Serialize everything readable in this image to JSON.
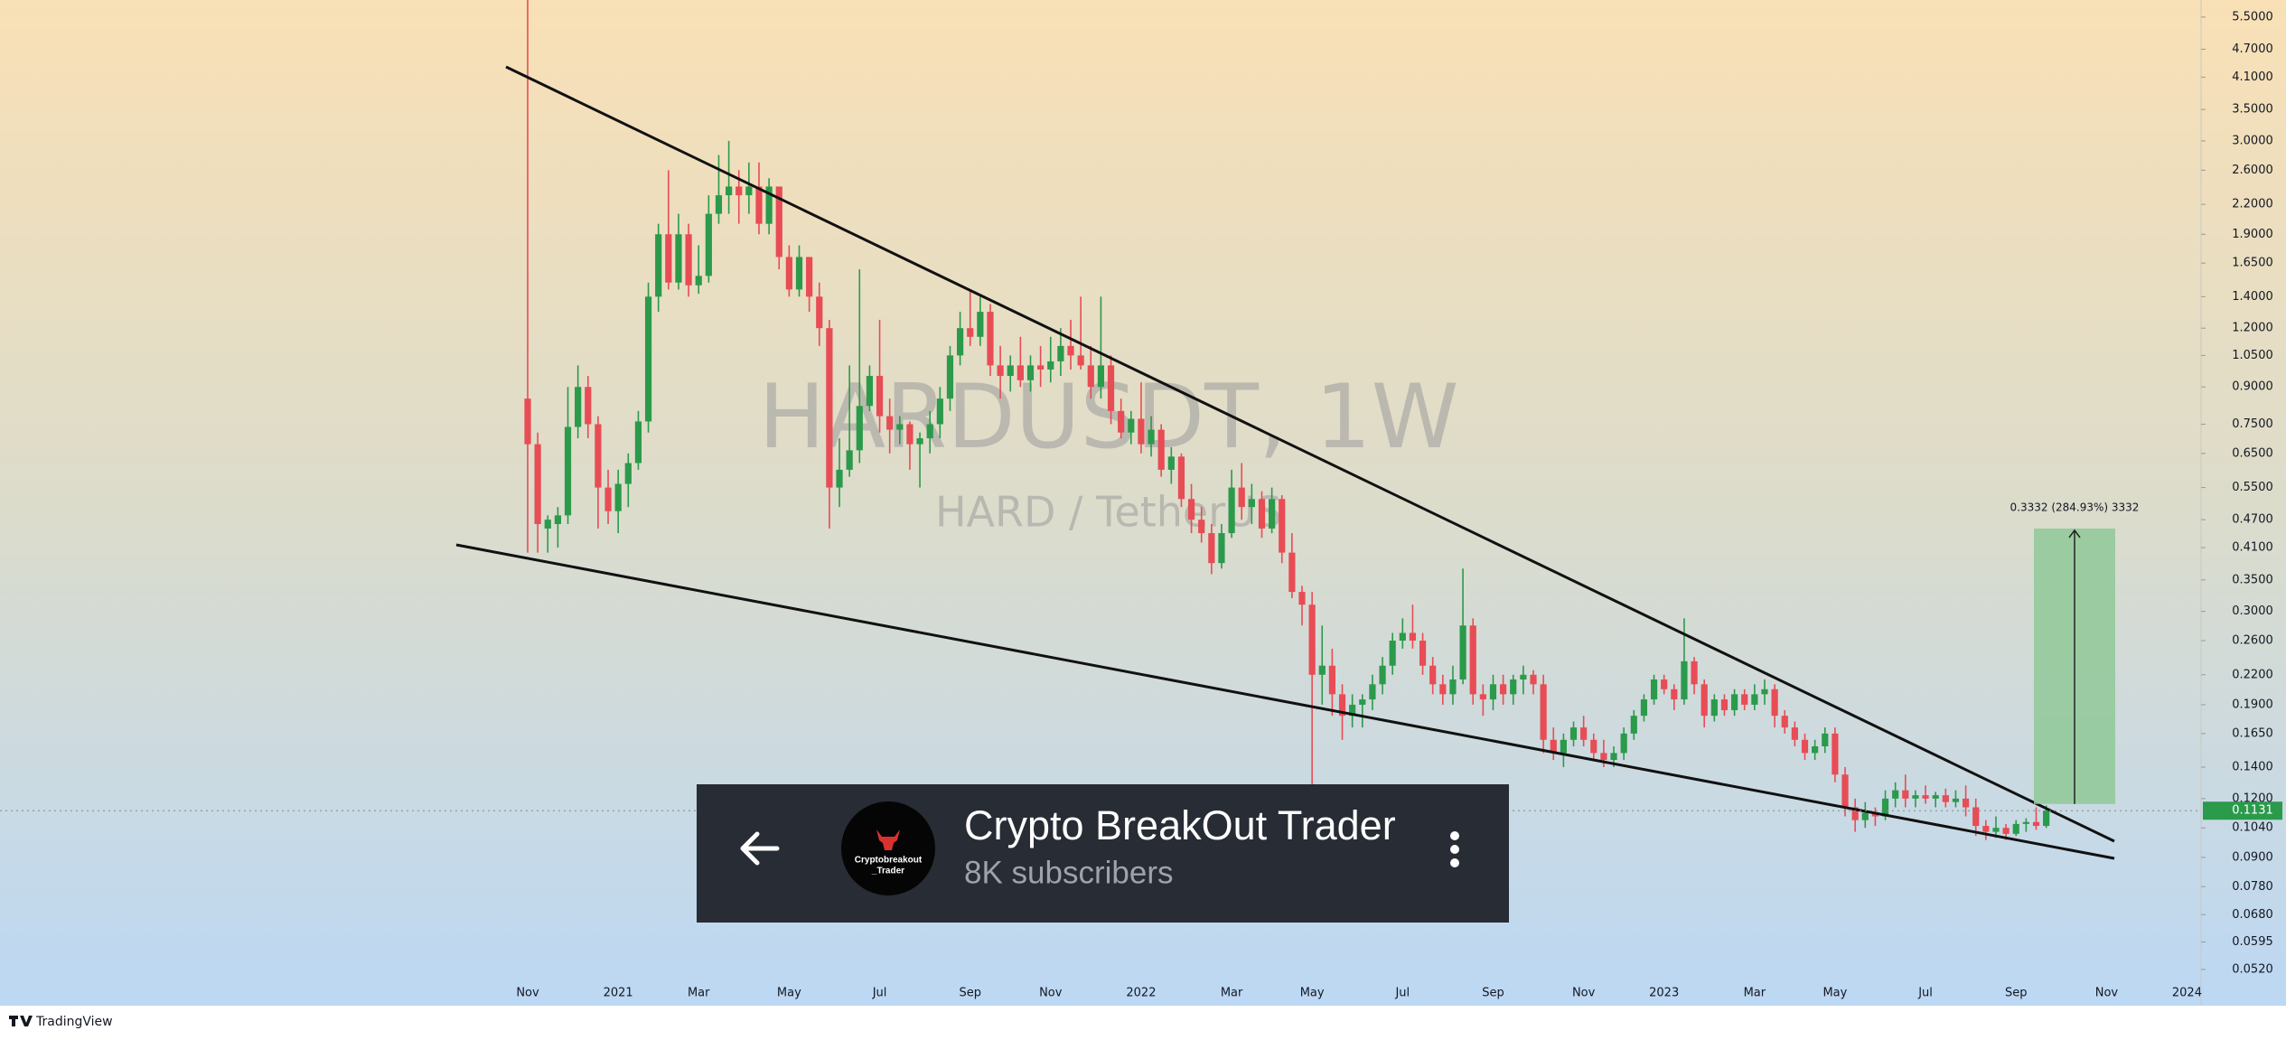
{
  "chart_data": {
    "type": "candlestick",
    "title": "HARDUSDT, 1W",
    "subtitle": "HARD / TetherUS",
    "log_scale": true,
    "up_color": "#2b9a4b",
    "down_color": "#e84c55",
    "ylim": [
      0.0493,
      5.98
    ],
    "yticks": [
      {
        "value": 5.5,
        "label": "5.5000"
      },
      {
        "value": 4.7,
        "label": "4.7000"
      },
      {
        "value": 4.1,
        "label": "4.1000"
      },
      {
        "value": 3.5,
        "label": "3.5000"
      },
      {
        "value": 3.0,
        "label": "3.0000"
      },
      {
        "value": 2.6,
        "label": "2.6000"
      },
      {
        "value": 2.2,
        "label": "2.2000"
      },
      {
        "value": 1.9,
        "label": "1.9000"
      },
      {
        "value": 1.65,
        "label": "1.6500"
      },
      {
        "value": 1.4,
        "label": "1.4000"
      },
      {
        "value": 1.2,
        "label": "1.2000"
      },
      {
        "value": 1.05,
        "label": "1.0500"
      },
      {
        "value": 0.9,
        "label": "0.9000"
      },
      {
        "value": 0.75,
        "label": "0.7500"
      },
      {
        "value": 0.65,
        "label": "0.6500"
      },
      {
        "value": 0.55,
        "label": "0.5500"
      },
      {
        "value": 0.47,
        "label": "0.4700"
      },
      {
        "value": 0.41,
        "label": "0.4100"
      },
      {
        "value": 0.35,
        "label": "0.3500"
      },
      {
        "value": 0.3,
        "label": "0.3000"
      },
      {
        "value": 0.26,
        "label": "0.2600"
      },
      {
        "value": 0.22,
        "label": "0.2200"
      },
      {
        "value": 0.19,
        "label": "0.1900"
      },
      {
        "value": 0.165,
        "label": "0.1650"
      },
      {
        "value": 0.14,
        "label": "0.1400"
      },
      {
        "value": 0.12,
        "label": "0.1200"
      },
      {
        "value": 0.104,
        "label": "0.1040"
      },
      {
        "value": 0.09,
        "label": "0.0900"
      },
      {
        "value": 0.078,
        "label": "0.0780"
      },
      {
        "value": 0.068,
        "label": "0.0680"
      },
      {
        "value": 0.0595,
        "label": "0.0595"
      },
      {
        "value": 0.052,
        "label": "0.0520"
      }
    ],
    "categories": [
      "Nov",
      null,
      null,
      null,
      null,
      null,
      null,
      null,
      null,
      "2021",
      null,
      null,
      null,
      null,
      null,
      null,
      null,
      "Mar",
      null,
      null,
      null,
      null,
      null,
      null,
      null,
      null,
      "May",
      null,
      null,
      null,
      null,
      null,
      null,
      null,
      null,
      "Jul",
      null,
      null,
      null,
      null,
      null,
      null,
      null,
      null,
      "Sep",
      null,
      null,
      null,
      null,
      null,
      null,
      null,
      "Nov",
      null,
      null,
      null,
      null,
      null,
      null,
      null,
      null,
      "2022",
      null,
      null,
      null,
      null,
      null,
      null,
      null,
      null,
      "Mar",
      null,
      null,
      null,
      null,
      null,
      null,
      null,
      "May",
      null,
      null,
      null,
      null,
      null,
      null,
      null,
      null,
      "Jul",
      null,
      null,
      null,
      null,
      null,
      null,
      null,
      null,
      "Sep",
      null,
      null,
      null,
      null,
      null,
      null,
      null,
      null,
      "Nov",
      null,
      null,
      null,
      null,
      null,
      null,
      null,
      "2023",
      null,
      null,
      null,
      null,
      null,
      null,
      null,
      null,
      "Mar",
      null,
      null,
      null,
      null,
      null,
      null,
      null,
      "May",
      null,
      null,
      null,
      null,
      null,
      null,
      null,
      null,
      "Jul",
      null,
      null,
      null,
      null,
      null,
      null,
      null,
      null,
      "Sep",
      null,
      null,
      null,
      null,
      null,
      null,
      null,
      null,
      "Nov",
      null,
      null,
      null,
      null,
      null,
      null,
      null,
      "2024",
      null,
      null
    ],
    "open": [
      0.85,
      0.68,
      0.45,
      0.46,
      0.48,
      0.74,
      0.9,
      0.75,
      0.55,
      0.49,
      0.56,
      0.62,
      0.76,
      1.4,
      1.9,
      1.5,
      1.9,
      1.48,
      1.55,
      2.1,
      2.3,
      2.4,
      2.3,
      2.4,
      2.0,
      2.4,
      1.7,
      1.45,
      1.7,
      1.4,
      1.2,
      0.55,
      0.6,
      0.66,
      0.82,
      0.95,
      0.78,
      0.73,
      0.75,
      0.68,
      0.7,
      0.75,
      0.85,
      1.05,
      1.2,
      1.15,
      1.3,
      1.0,
      0.95,
      1.0,
      0.93,
      1.0,
      0.98,
      1.02,
      1.1,
      1.05,
      1.0,
      0.9,
      1.0,
      0.8,
      0.72,
      0.77,
      0.68,
      0.73,
      0.6,
      0.64,
      0.52,
      0.47,
      0.44,
      0.38,
      0.44,
      0.55,
      0.5,
      0.52,
      0.45,
      0.52,
      0.4,
      0.33,
      0.31,
      0.22,
      0.23,
      0.2,
      0.18,
      0.19,
      0.195,
      0.21,
      0.23,
      0.26,
      0.27,
      0.26,
      0.23,
      0.21,
      0.2,
      0.215,
      0.28,
      0.2,
      0.195,
      0.21,
      0.2,
      0.215,
      0.22,
      0.21,
      0.16,
      0.15,
      0.16,
      0.17,
      0.16,
      0.15,
      0.145,
      0.15,
      0.165,
      0.18,
      0.195,
      0.215,
      0.205,
      0.195,
      0.235,
      0.21,
      0.18,
      0.195,
      0.185,
      0.2,
      0.19,
      0.2,
      0.205,
      0.18,
      0.17,
      0.16,
      0.15,
      0.155,
      0.165,
      0.135,
      0.115,
      0.108,
      0.112,
      0.11,
      0.12,
      0.125,
      0.12,
      0.122,
      0.12,
      0.122,
      0.118,
      0.12,
      0.115,
      0.105,
      0.102,
      0.104,
      0.101,
      0.106,
      0.107,
      0.105,
      null,
      null,
      null,
      null,
      null,
      null,
      null,
      null,
      null,
      null,
      null,
      null,
      null,
      null,
      null,
      null
    ],
    "high": [
      8,
      0.72,
      0.48,
      0.5,
      0.9,
      1.0,
      0.95,
      0.78,
      0.6,
      0.6,
      0.65,
      0.8,
      1.5,
      2.0,
      2.6,
      2.1,
      2.0,
      1.8,
      2.3,
      2.8,
      3.0,
      2.6,
      2.7,
      2.7,
      2.5,
      2.4,
      1.8,
      1.8,
      1.7,
      1.5,
      1.25,
      0.7,
      1.0,
      1.6,
      1.0,
      1.25,
      0.85,
      0.78,
      0.76,
      0.72,
      0.8,
      0.9,
      1.1,
      1.3,
      1.45,
      1.4,
      1.35,
      1.1,
      1.05,
      1.15,
      1.05,
      1.1,
      1.15,
      1.2,
      1.25,
      1.4,
      1.1,
      1.4,
      1.05,
      0.85,
      0.8,
      0.92,
      0.78,
      0.75,
      0.67,
      0.65,
      0.56,
      0.5,
      0.46,
      0.46,
      0.6,
      0.62,
      0.56,
      0.54,
      0.55,
      0.53,
      0.44,
      0.34,
      0.33,
      0.28,
      0.25,
      0.21,
      0.2,
      0.2,
      0.22,
      0.24,
      0.27,
      0.29,
      0.31,
      0.27,
      0.24,
      0.22,
      0.23,
      0.37,
      0.29,
      0.21,
      0.22,
      0.22,
      0.22,
      0.23,
      0.225,
      0.22,
      0.17,
      0.165,
      0.175,
      0.18,
      0.165,
      0.16,
      0.155,
      0.17,
      0.185,
      0.2,
      0.22,
      0.22,
      0.21,
      0.29,
      0.24,
      0.215,
      0.2,
      0.2,
      0.205,
      0.205,
      0.21,
      0.215,
      0.21,
      0.185,
      0.175,
      0.165,
      0.16,
      0.17,
      0.17,
      0.14,
      0.12,
      0.118,
      0.115,
      0.125,
      0.13,
      0.135,
      0.125,
      0.128,
      0.124,
      0.126,
      0.125,
      0.128,
      0.12,
      0.108,
      0.11,
      0.106,
      0.108,
      0.109,
      0.115,
      0.116,
      null,
      null,
      null,
      null,
      null,
      null,
      null,
      null,
      null,
      null,
      null,
      null,
      null,
      null,
      null,
      null
    ],
    "low": [
      0.4,
      0.4,
      0.4,
      0.41,
      0.46,
      0.7,
      0.7,
      0.45,
      0.46,
      0.44,
      0.5,
      0.6,
      0.72,
      1.3,
      1.45,
      1.45,
      1.4,
      1.42,
      1.5,
      2.0,
      2.1,
      2.0,
      2.1,
      1.9,
      1.9,
      1.6,
      1.4,
      1.4,
      1.3,
      1.1,
      0.45,
      0.5,
      0.58,
      0.62,
      0.8,
      0.72,
      0.65,
      0.68,
      0.6,
      0.55,
      0.65,
      0.7,
      0.8,
      1.0,
      1.1,
      1.1,
      0.95,
      0.85,
      0.88,
      0.9,
      0.88,
      0.9,
      0.92,
      0.95,
      0.98,
      0.98,
      0.85,
      0.85,
      0.75,
      0.7,
      0.68,
      0.65,
      0.64,
      0.58,
      0.56,
      0.5,
      0.44,
      0.42,
      0.36,
      0.37,
      0.43,
      0.47,
      0.46,
      0.43,
      0.44,
      0.38,
      0.32,
      0.28,
      0.125,
      0.19,
      0.18,
      0.16,
      0.17,
      0.17,
      0.185,
      0.2,
      0.22,
      0.25,
      0.25,
      0.22,
      0.2,
      0.19,
      0.19,
      0.21,
      0.19,
      0.18,
      0.185,
      0.19,
      0.19,
      0.2,
      0.2,
      0.15,
      0.145,
      0.14,
      0.155,
      0.155,
      0.145,
      0.14,
      0.14,
      0.145,
      0.16,
      0.175,
      0.19,
      0.2,
      0.185,
      0.19,
      0.2,
      0.17,
      0.175,
      0.18,
      0.18,
      0.185,
      0.185,
      0.19,
      0.17,
      0.165,
      0.155,
      0.145,
      0.145,
      0.15,
      0.13,
      0.11,
      0.102,
      0.104,
      0.105,
      0.108,
      0.115,
      0.115,
      0.115,
      0.117,
      0.115,
      0.115,
      0.115,
      0.11,
      0.1,
      0.098,
      0.099,
      0.098,
      0.1,
      0.102,
      0.103,
      0.104,
      null,
      null,
      null,
      null,
      null,
      null,
      null,
      null,
      null,
      null,
      null,
      null,
      null,
      null,
      null,
      null
    ],
    "close": [
      0.68,
      0.46,
      0.47,
      0.48,
      0.74,
      0.9,
      0.75,
      0.55,
      0.49,
      0.56,
      0.62,
      0.76,
      1.4,
      1.9,
      1.5,
      1.9,
      1.48,
      1.55,
      2.1,
      2.3,
      2.4,
      2.3,
      2.4,
      2.0,
      2.4,
      1.7,
      1.45,
      1.7,
      1.4,
      1.2,
      0.55,
      0.6,
      0.66,
      0.82,
      0.95,
      0.78,
      0.73,
      0.75,
      0.68,
      0.7,
      0.75,
      0.85,
      1.05,
      1.2,
      1.15,
      1.3,
      1.0,
      0.95,
      1.0,
      0.93,
      1.0,
      0.98,
      1.02,
      1.1,
      1.05,
      1.0,
      0.9,
      1.0,
      0.8,
      0.72,
      0.77,
      0.68,
      0.73,
      0.6,
      0.64,
      0.52,
      0.47,
      0.44,
      0.38,
      0.44,
      0.55,
      0.5,
      0.52,
      0.45,
      0.52,
      0.4,
      0.33,
      0.31,
      0.22,
      0.23,
      0.2,
      0.18,
      0.19,
      0.195,
      0.21,
      0.23,
      0.26,
      0.27,
      0.26,
      0.23,
      0.21,
      0.2,
      0.215,
      0.28,
      0.2,
      0.195,
      0.21,
      0.2,
      0.215,
      0.22,
      0.21,
      0.16,
      0.15,
      0.16,
      0.17,
      0.16,
      0.15,
      0.145,
      0.15,
      0.165,
      0.18,
      0.195,
      0.215,
      0.205,
      0.195,
      0.235,
      0.21,
      0.18,
      0.195,
      0.185,
      0.2,
      0.19,
      0.2,
      0.205,
      0.18,
      0.17,
      0.16,
      0.15,
      0.155,
      0.165,
      0.135,
      0.115,
      0.108,
      0.112,
      0.11,
      0.12,
      0.125,
      0.12,
      0.122,
      0.12,
      0.122,
      0.118,
      0.12,
      0.115,
      0.105,
      0.102,
      0.104,
      0.101,
      0.106,
      0.107,
      0.105,
      0.1131,
      null,
      null,
      null,
      null,
      null,
      null,
      null,
      null,
      null,
      null,
      null,
      null,
      null,
      null,
      null,
      null
    ],
    "last_price": 0.1131,
    "last_price_color": "#2b9a4b",
    "measure": {
      "from": 0.1169,
      "to": 0.4501,
      "label": "0.3332 (284.93%) 3332",
      "color": "#93c99b"
    }
  },
  "overlay": {
    "channel_name": "Crypto BreakOut Trader",
    "subscribers": "8K subscribers",
    "avatar_text": [
      "Cryptobreakout",
      "_Trader"
    ]
  },
  "footer": {
    "brand": "TradingView"
  }
}
